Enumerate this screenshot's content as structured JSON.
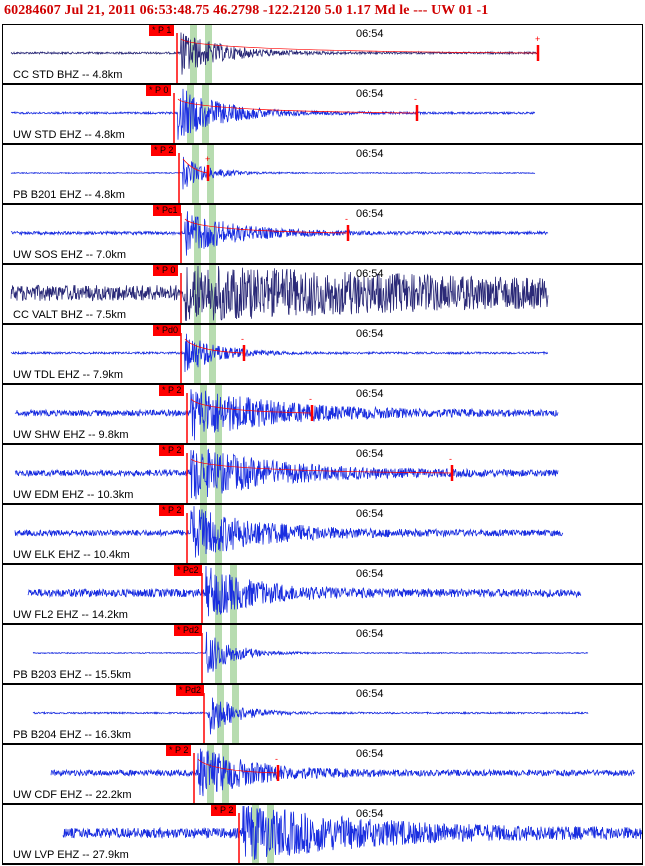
{
  "header": {
    "title": "60284607 Jul 21, 2011 06:53:48.75   46.2798 -122.2120   5.0 1.17 Md le --- UW 01   -1"
  },
  "colors": {
    "header_text": "#d00000",
    "trace_blue": "#1a2ee0",
    "trace_dark": "#2b2a78",
    "pick_red": "#ff0000",
    "window_green": "#b7dcb0",
    "border": "#000000"
  },
  "traces": [
    {
      "label": "CC STD BHZ -- 4.8km",
      "time": "06:54",
      "pick": "* P 1",
      "color": "dark",
      "span": [
        8,
        535
      ],
      "onset": 178,
      "decay": 0.025,
      "amp": 22,
      "noise": 1,
      "coda": [
        535,
        "+"
      ]
    },
    {
      "label": "UW STD EHZ -- 4.8km",
      "time": "06:54",
      "pick": "* P 0",
      "color": "blue",
      "span": [
        8,
        532
      ],
      "onset": 175,
      "decay": 0.022,
      "amp": 26,
      "noise": 1,
      "coda": [
        414,
        "-"
      ]
    },
    {
      "label": "PB B201 EHZ -- 4.8km",
      "time": "06:54",
      "pick": "* P 2",
      "color": "blue",
      "span": [
        8,
        532
      ],
      "onset": 180,
      "decay": 0.04,
      "amp": 16,
      "noise": 0.5,
      "coda": [
        205,
        "+"
      ]
    },
    {
      "label": "UW SOS EHZ -- 7.0km",
      "time": "06:54",
      "pick": "* Pc1",
      "color": "blue",
      "span": [
        8,
        545
      ],
      "onset": 182,
      "decay": 0.02,
      "amp": 22,
      "noise": 1.5,
      "coda": [
        345,
        "-"
      ]
    },
    {
      "label": "CC VALT BHZ -- 7.5km",
      "time": "06:54",
      "pick": "* P 0",
      "color": "dark",
      "span": [
        8,
        545
      ],
      "onset": 182,
      "decay": 0.003,
      "amp": 22,
      "noise": 8,
      "coda": null
    },
    {
      "label": "UW TDL EHZ -- 7.9km",
      "time": "06:54",
      "pick": "* Pd0",
      "color": "blue",
      "span": [
        8,
        545
      ],
      "onset": 182,
      "decay": 0.03,
      "amp": 20,
      "noise": 1,
      "coda": [
        241,
        "-"
      ]
    },
    {
      "label": "UW SHW EHZ -- 9.8km",
      "time": "06:54",
      "pick": "* P 2",
      "color": "blue",
      "span": [
        12,
        555
      ],
      "onset": 188,
      "decay": 0.012,
      "amp": 26,
      "noise": 3,
      "coda": [
        309,
        "-"
      ]
    },
    {
      "label": "UW EDM EHZ -- 10.3km",
      "time": "06:54",
      "pick": "* P 2",
      "color": "blue",
      "span": [
        12,
        555
      ],
      "onset": 188,
      "decay": 0.012,
      "amp": 26,
      "noise": 3,
      "coda": [
        449,
        "-"
      ]
    },
    {
      "label": "UW ELK EHZ -- 10.4km",
      "time": "06:54",
      "pick": "* P 2",
      "color": "blue",
      "span": [
        12,
        560
      ],
      "onset": 188,
      "decay": 0.015,
      "amp": 26,
      "noise": 3,
      "coda": null
    },
    {
      "label": "UW FL2 EHZ -- 14.2km",
      "time": "06:54",
      "pick": "* Pc2",
      "color": "blue",
      "span": [
        25,
        578
      ],
      "onset": 203,
      "decay": 0.02,
      "amp": 24,
      "noise": 4,
      "coda": null
    },
    {
      "label": "PB B203 EHZ -- 15.5km",
      "time": "06:54",
      "pick": "* Pd2",
      "color": "blue",
      "span": [
        30,
        585
      ],
      "onset": 203,
      "decay": 0.04,
      "amp": 24,
      "noise": 0.5,
      "coda": null
    },
    {
      "label": "PB B204 EHZ -- 16.3km",
      "time": "06:54",
      "pick": "* Pd2",
      "color": "blue",
      "span": [
        30,
        585
      ],
      "onset": 205,
      "decay": 0.04,
      "amp": 24,
      "noise": 0.8,
      "coda": null
    },
    {
      "label": "UW CDF EHZ -- 22.2km",
      "time": "06:54",
      "pick": "* P 2",
      "color": "blue",
      "span": [
        48,
        632
      ],
      "onset": 195,
      "decay": 0.02,
      "amp": 26,
      "noise": 3,
      "coda": [
        275,
        "-"
      ]
    },
    {
      "label": "UW LVP EHZ -- 27.9km",
      "time": "06:54",
      "pick": "* P 2",
      "color": "blue",
      "span": [
        60,
        640
      ],
      "onset": 240,
      "decay": 0.008,
      "amp": 26,
      "noise": 5,
      "coda": null
    }
  ]
}
